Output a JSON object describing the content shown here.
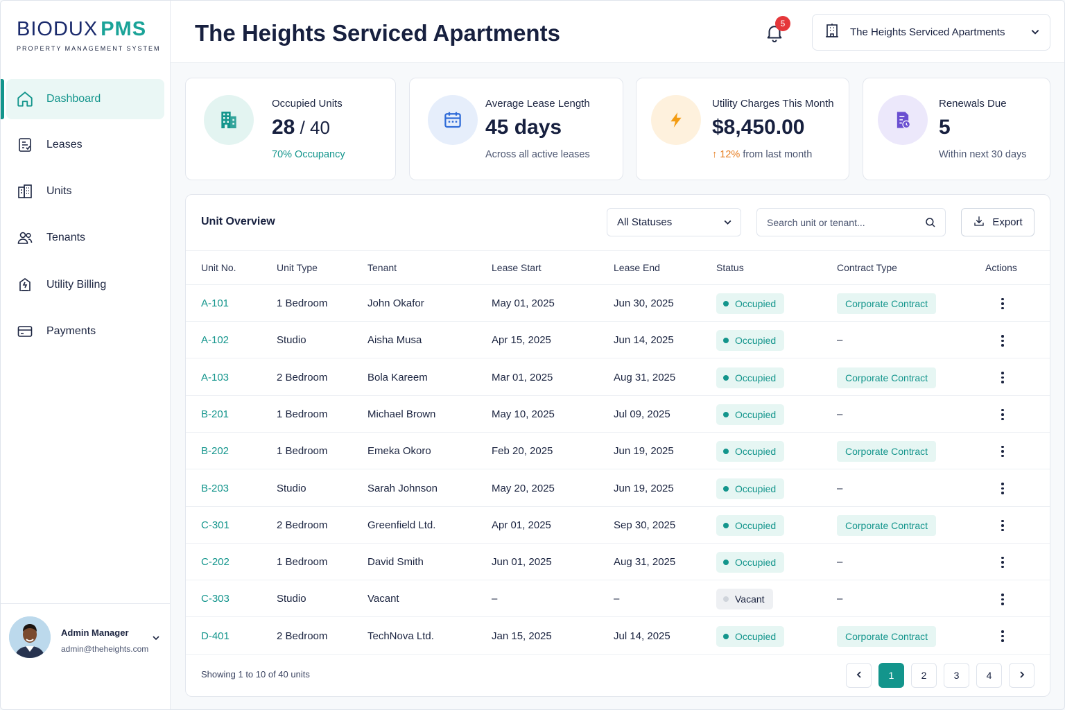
{
  "brand": {
    "name": "BIODUX",
    "accent": "PMS",
    "subtitle": "PROPERTY MANAGEMENT SYSTEM"
  },
  "colors": {
    "primary": "#13958c",
    "navy": "#17203f",
    "badge": "#e5373a",
    "orange": "#f39c12",
    "purple": "#6a4fd1"
  },
  "sidebar": {
    "items": [
      {
        "label": "Dashboard",
        "icon": "home-icon",
        "active": true
      },
      {
        "label": "Leases",
        "icon": "lease-document-icon",
        "active": false
      },
      {
        "label": "Units",
        "icon": "building-icon",
        "active": false
      },
      {
        "label": "Tenants",
        "icon": "users-icon",
        "active": false
      },
      {
        "label": "Utility Billing",
        "icon": "utility-bill-icon",
        "active": false
      },
      {
        "label": "Payments",
        "icon": "credit-card-icon",
        "active": false
      }
    ],
    "user": {
      "name": "Admin Manager",
      "email": "admin@theheights.com"
    }
  },
  "header": {
    "title": "The Heights Serviced Apartments",
    "notifications": "5",
    "property_selector": "The Heights Serviced Apartments"
  },
  "stats": [
    {
      "title": "Occupied Units",
      "value": "28",
      "total": "40",
      "sub": "70% Occupancy"
    },
    {
      "title": "Average Lease Length",
      "value": "45 days",
      "sub": "Across all active leases"
    },
    {
      "title": "Utility Charges This Month",
      "value": "$8,450.00",
      "sub_highlight": "12%",
      "sub": "from last month"
    },
    {
      "title": "Renewals Due",
      "value": "5",
      "sub": "Within next 30 days"
    }
  ],
  "table": {
    "title": "Unit Overview",
    "status_filter": "All Statuses",
    "search_placeholder": "Search unit or tenant...",
    "export_label": "Export",
    "columns": [
      "Unit No.",
      "Unit Type",
      "Tenant",
      "Lease Start",
      "Lease End",
      "Status",
      "Contract Type",
      "Actions"
    ],
    "rows": [
      {
        "unit": "A-101",
        "type": "1 Bedroom",
        "tenant": "John Okafor",
        "start": "May 01, 2025",
        "end": "Jun 30, 2025",
        "status": "Occupied",
        "contract": "Corporate Contract"
      },
      {
        "unit": "A-102",
        "type": "Studio",
        "tenant": "Aisha Musa",
        "start": "Apr 15, 2025",
        "end": "Jun 14, 2025",
        "status": "Occupied",
        "contract": "–"
      },
      {
        "unit": "A-103",
        "type": "2 Bedroom",
        "tenant": "Bola Kareem",
        "start": "Mar 01, 2025",
        "end": "Aug 31, 2025",
        "status": "Occupied",
        "contract": "Corporate Contract"
      },
      {
        "unit": "B-201",
        "type": "1 Bedroom",
        "tenant": "Michael Brown",
        "start": "May 10, 2025",
        "end": "Jul 09, 2025",
        "status": "Occupied",
        "contract": "–"
      },
      {
        "unit": "B-202",
        "type": "1 Bedroom",
        "tenant": "Emeka Okoro",
        "start": "Feb 20, 2025",
        "end": "Jun 19, 2025",
        "status": "Occupied",
        "contract": "Corporate Contract"
      },
      {
        "unit": "B-203",
        "type": "Studio",
        "tenant": "Sarah Johnson",
        "start": "May 20, 2025",
        "end": "Jun 19, 2025",
        "status": "Occupied",
        "contract": "–"
      },
      {
        "unit": "C-301",
        "type": "2 Bedroom",
        "tenant": "Greenfield Ltd.",
        "start": "Apr 01, 2025",
        "end": "Sep 30, 2025",
        "status": "Occupied",
        "contract": "Corporate Contract"
      },
      {
        "unit": "C-202",
        "type": "1 Bedroom",
        "tenant": "David Smith",
        "start": "Jun 01, 2025",
        "end": "Aug 31, 2025",
        "status": "Occupied",
        "contract": "–"
      },
      {
        "unit": "C-303",
        "type": "Studio",
        "tenant": "Vacant",
        "start": "–",
        "end": "–",
        "status": "Vacant",
        "contract": "–"
      },
      {
        "unit": "D-401",
        "type": "2 Bedroom",
        "tenant": "TechNova Ltd.",
        "start": "Jan 15, 2025",
        "end": "Jul 14, 2025",
        "status": "Occupied",
        "contract": "Corporate Contract"
      }
    ],
    "footer": "Showing 1 to 10 of 40 units",
    "pages": [
      "1",
      "2",
      "3",
      "4"
    ],
    "current_page": "1"
  }
}
